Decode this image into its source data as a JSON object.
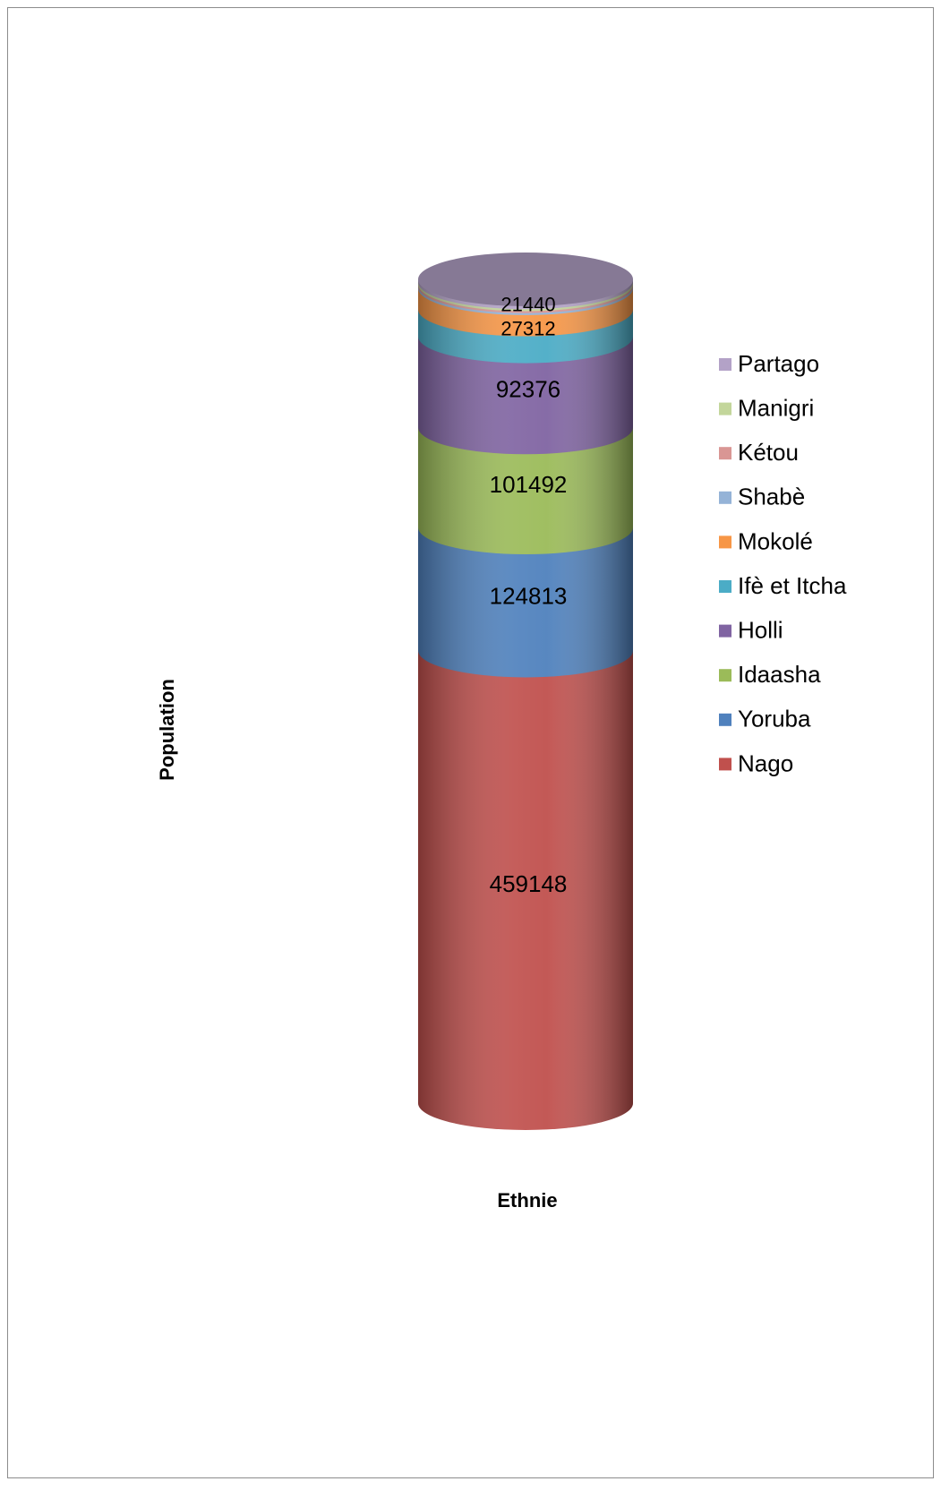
{
  "chart_data": {
    "type": "stacked-cylinder",
    "x_label": "Ethnie",
    "y_label": "Population",
    "series": [
      {
        "name": "Nago",
        "color": "#c0504d",
        "values": [
          459148
        ]
      },
      {
        "name": "Yoruba",
        "color": "#4f81bd",
        "values": [
          124813
        ]
      },
      {
        "name": "Idaasha",
        "color": "#9bbb59",
        "values": [
          101492
        ]
      },
      {
        "name": "Holli",
        "color": "#8064a2",
        "values": [
          92376
        ]
      },
      {
        "name": "Ifè et Itcha",
        "color": "#4bacc6",
        "values": [
          27312
        ]
      },
      {
        "name": "Mokolé",
        "color": "#f79646",
        "values": [
          21440
        ]
      },
      {
        "name": "Shabè",
        "color": "#95b3d7",
        "values": [
          2000
        ]
      },
      {
        "name": "Kétou",
        "color": "#d99694",
        "values": [
          2000
        ]
      },
      {
        "name": "Manigri",
        "color": "#c3d69b",
        "values": [
          2000
        ]
      },
      {
        "name": "Partago",
        "color": "#b3a2c7",
        "values": [
          3000
        ]
      }
    ],
    "legend": "right"
  }
}
